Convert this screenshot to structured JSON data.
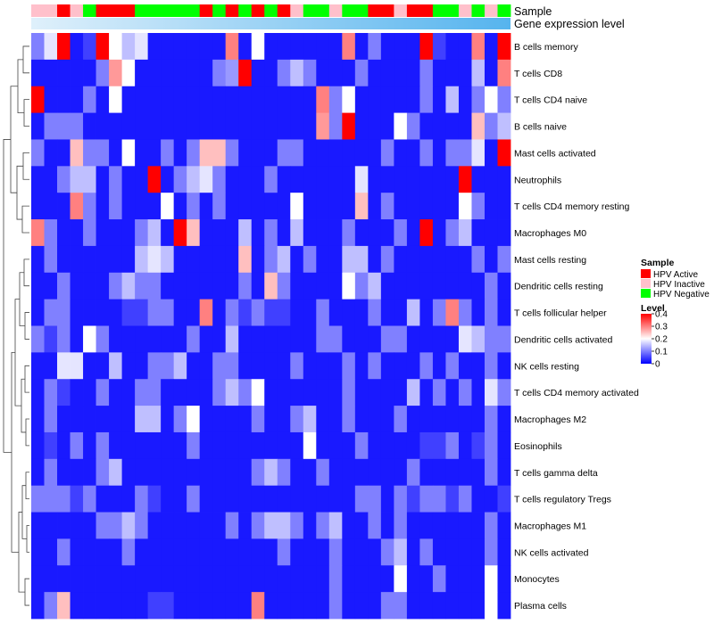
{
  "chart_data": {
    "type": "heatmap",
    "title": "",
    "annotation_labels": {
      "sample": "Sample",
      "gene": "Gene expression level"
    },
    "rows": [
      "B cells memory",
      "T cells CD8",
      "T cells CD4 naive",
      "B cells naive",
      "Mast cells activated",
      "Neutrophils",
      "T cells CD4 memory resting",
      "Macrophages M0",
      "Mast cells resting",
      "Dendritic cells resting",
      "T cells follicular helper",
      "Dendritic cells activated",
      "NK cells resting",
      "T cells CD4 memory activated",
      "Macrophages M2",
      "Eosinophils",
      "T cells gamma delta",
      "T cells regulatory  Tregs",
      "Macrophages M1",
      "NK cells activated",
      "Monocytes",
      "Plasma cells"
    ],
    "sample_groups": [
      "HPV Inactive",
      "HPV Inactive",
      "HPV Active",
      "HPV Inactive",
      "HPV Negative",
      "HPV Active",
      "HPV Active",
      "HPV Active",
      "HPV Negative",
      "HPV Negative",
      "HPV Negative",
      "HPV Negative",
      "HPV Negative",
      "HPV Active",
      "HPV Negative",
      "HPV Active",
      "HPV Negative",
      "HPV Active",
      "HPV Negative",
      "HPV Active",
      "HPV Inactive",
      "HPV Negative",
      "HPV Negative",
      "HPV Inactive",
      "HPV Negative",
      "HPV Negative",
      "HPV Active",
      "HPV Active",
      "HPV Inactive",
      "HPV Active",
      "HPV Active",
      "HPV Negative",
      "HPV Negative",
      "HPV Inactive",
      "HPV Negative",
      "HPV Inactive",
      "HPV Negative"
    ],
    "matrix": [
      [
        0.1,
        0.18,
        0.4,
        0.02,
        0.05,
        0.4,
        0.2,
        0.15,
        0.18,
        0.02,
        0.02,
        0.02,
        0.02,
        0.02,
        0.02,
        0.3,
        0.02,
        0.2,
        0.02,
        0.02,
        0.02,
        0.02,
        0.02,
        0.02,
        0.3,
        0.02,
        0.1,
        0.02,
        0.02,
        0.02,
        0.4,
        0.05,
        0.02,
        0.02,
        0.3,
        0.02,
        0.4
      ],
      [
        0.02,
        0.02,
        0.02,
        0.02,
        0.02,
        0.1,
        0.28,
        0.2,
        0.02,
        0.02,
        0.02,
        0.02,
        0.02,
        0.02,
        0.1,
        0.12,
        0.4,
        0.02,
        0.02,
        0.1,
        0.15,
        0.1,
        0.02,
        0.02,
        0.02,
        0.1,
        0.02,
        0.02,
        0.02,
        0.02,
        0.1,
        0.02,
        0.02,
        0.02,
        0.15,
        0.02,
        0.3
      ],
      [
        0.4,
        0.02,
        0.02,
        0.02,
        0.1,
        0.02,
        0.2,
        0.02,
        0.02,
        0.02,
        0.02,
        0.02,
        0.02,
        0.02,
        0.02,
        0.02,
        0.02,
        0.02,
        0.02,
        0.02,
        0.02,
        0.02,
        0.3,
        0.1,
        0.2,
        0.02,
        0.02,
        0.02,
        0.02,
        0.02,
        0.1,
        0.02,
        0.15,
        0.02,
        0.1,
        0.2,
        0.1
      ],
      [
        0.02,
        0.1,
        0.1,
        0.1,
        0.02,
        0.02,
        0.02,
        0.02,
        0.02,
        0.02,
        0.02,
        0.02,
        0.02,
        0.02,
        0.02,
        0.02,
        0.02,
        0.02,
        0.02,
        0.02,
        0.02,
        0.02,
        0.28,
        0.1,
        0.4,
        0.02,
        0.02,
        0.02,
        0.2,
        0.1,
        0.02,
        0.02,
        0.02,
        0.02,
        0.25,
        0.1,
        0.15
      ],
      [
        0.1,
        0.02,
        0.02,
        0.25,
        0.1,
        0.1,
        0.02,
        0.2,
        0.02,
        0.02,
        0.1,
        0.02,
        0.1,
        0.25,
        0.25,
        0.1,
        0.02,
        0.02,
        0.02,
        0.1,
        0.1,
        0.02,
        0.02,
        0.02,
        0.02,
        0.02,
        0.02,
        0.1,
        0.02,
        0.02,
        0.1,
        0.02,
        0.1,
        0.1,
        0.18,
        0.02,
        0.4
      ],
      [
        0.02,
        0.02,
        0.1,
        0.15,
        0.15,
        0.02,
        0.1,
        0.02,
        0.02,
        0.4,
        0.02,
        0.1,
        0.15,
        0.18,
        0.1,
        0.02,
        0.02,
        0.02,
        0.1,
        0.02,
        0.02,
        0.02,
        0.02,
        0.02,
        0.02,
        0.18,
        0.02,
        0.02,
        0.02,
        0.02,
        0.02,
        0.02,
        0.02,
        0.4,
        0.02,
        0.02,
        0.02
      ],
      [
        0.02,
        0.02,
        0.02,
        0.3,
        0.1,
        0.02,
        0.1,
        0.02,
        0.02,
        0.02,
        0.2,
        0.02,
        0.1,
        0.02,
        0.1,
        0.02,
        0.02,
        0.02,
        0.02,
        0.02,
        0.2,
        0.02,
        0.02,
        0.02,
        0.02,
        0.25,
        0.02,
        0.1,
        0.02,
        0.02,
        0.02,
        0.02,
        0.02,
        0.2,
        0.1,
        0.02,
        0.02
      ],
      [
        0.3,
        0.1,
        0.02,
        0.02,
        0.1,
        0.02,
        0.02,
        0.02,
        0.1,
        0.15,
        0.02,
        0.4,
        0.25,
        0.02,
        0.02,
        0.02,
        0.15,
        0.02,
        0.1,
        0.02,
        0.15,
        0.02,
        0.02,
        0.02,
        0.1,
        0.02,
        0.02,
        0.02,
        0.1,
        0.02,
        0.4,
        0.02,
        0.1,
        0.15,
        0.02,
        0.02,
        0.02
      ],
      [
        0.02,
        0.1,
        0.02,
        0.02,
        0.02,
        0.02,
        0.02,
        0.02,
        0.15,
        0.18,
        0.15,
        0.02,
        0.02,
        0.02,
        0.02,
        0.02,
        0.25,
        0.02,
        0.1,
        0.15,
        0.02,
        0.1,
        0.02,
        0.02,
        0.15,
        0.15,
        0.02,
        0.1,
        0.02,
        0.02,
        0.02,
        0.02,
        0.02,
        0.02,
        0.1,
        0.02,
        0.1
      ],
      [
        0.02,
        0.02,
        0.1,
        0.02,
        0.02,
        0.02,
        0.1,
        0.15,
        0.1,
        0.1,
        0.02,
        0.02,
        0.02,
        0.02,
        0.02,
        0.02,
        0.1,
        0.02,
        0.25,
        0.1,
        0.02,
        0.02,
        0.02,
        0.02,
        0.2,
        0.1,
        0.15,
        0.02,
        0.02,
        0.02,
        0.02,
        0.02,
        0.02,
        0.02,
        0.02,
        0.1,
        0.02
      ],
      [
        0.02,
        0.1,
        0.1,
        0.02,
        0.02,
        0.02,
        0.02,
        0.05,
        0.05,
        0.1,
        0.1,
        0.02,
        0.02,
        0.3,
        0.02,
        0.1,
        0.05,
        0.1,
        0.05,
        0.05,
        0.02,
        0.02,
        0.1,
        0.02,
        0.02,
        0.02,
        0.1,
        0.02,
        0.02,
        0.15,
        0.02,
        0.1,
        0.3,
        0.1,
        0.02,
        0.1,
        0.02
      ],
      [
        0.1,
        0.05,
        0.1,
        0.02,
        0.2,
        0.1,
        0.02,
        0.02,
        0.02,
        0.02,
        0.02,
        0.02,
        0.1,
        0.02,
        0.02,
        0.15,
        0.02,
        0.02,
        0.02,
        0.02,
        0.02,
        0.02,
        0.1,
        0.1,
        0.02,
        0.02,
        0.02,
        0.1,
        0.1,
        0.02,
        0.02,
        0.02,
        0.02,
        0.18,
        0.15,
        0.1,
        0.1
      ],
      [
        0.02,
        0.02,
        0.18,
        0.18,
        0.02,
        0.02,
        0.15,
        0.02,
        0.02,
        0.1,
        0.1,
        0.15,
        0.02,
        0.02,
        0.1,
        0.1,
        0.02,
        0.02,
        0.02,
        0.02,
        0.1,
        0.02,
        0.02,
        0.02,
        0.1,
        0.02,
        0.1,
        0.02,
        0.02,
        0.02,
        0.1,
        0.02,
        0.1,
        0.02,
        0.02,
        0.1,
        0.02
      ],
      [
        0.02,
        0.1,
        0.05,
        0.02,
        0.02,
        0.1,
        0.02,
        0.02,
        0.1,
        0.1,
        0.02,
        0.02,
        0.02,
        0.02,
        0.1,
        0.15,
        0.1,
        0.2,
        0.02,
        0.02,
        0.02,
        0.02,
        0.02,
        0.02,
        0.1,
        0.02,
        0.02,
        0.02,
        0.02,
        0.15,
        0.02,
        0.1,
        0.02,
        0.1,
        0.02,
        0.18,
        0.1
      ],
      [
        0.02,
        0.1,
        0.02,
        0.02,
        0.02,
        0.02,
        0.02,
        0.02,
        0.15,
        0.15,
        0.02,
        0.1,
        0.2,
        0.02,
        0.02,
        0.02,
        0.02,
        0.1,
        0.02,
        0.02,
        0.1,
        0.15,
        0.02,
        0.02,
        0.1,
        0.02,
        0.02,
        0.02,
        0.1,
        0.02,
        0.02,
        0.02,
        0.02,
        0.02,
        0.02,
        0.1,
        0.02
      ],
      [
        0.02,
        0.05,
        0.02,
        0.1,
        0.02,
        0.1,
        0.02,
        0.02,
        0.02,
        0.02,
        0.02,
        0.02,
        0.1,
        0.02,
        0.02,
        0.02,
        0.02,
        0.02,
        0.02,
        0.02,
        0.02,
        0.2,
        0.02,
        0.02,
        0.02,
        0.1,
        0.02,
        0.02,
        0.02,
        0.02,
        0.05,
        0.05,
        0.1,
        0.02,
        0.05,
        0.1,
        0.02
      ],
      [
        0.02,
        0.1,
        0.02,
        0.02,
        0.02,
        0.1,
        0.15,
        0.02,
        0.02,
        0.02,
        0.02,
        0.02,
        0.02,
        0.02,
        0.02,
        0.02,
        0.02,
        0.1,
        0.15,
        0.1,
        0.02,
        0.02,
        0.1,
        0.02,
        0.02,
        0.02,
        0.02,
        0.02,
        0.02,
        0.1,
        0.02,
        0.02,
        0.02,
        0.02,
        0.02,
        0.1,
        0.02
      ],
      [
        0.1,
        0.1,
        0.1,
        0.05,
        0.1,
        0.02,
        0.02,
        0.02,
        0.1,
        0.05,
        0.02,
        0.02,
        0.1,
        0.02,
        0.02,
        0.02,
        0.02,
        0.02,
        0.02,
        0.02,
        0.02,
        0.02,
        0.02,
        0.02,
        0.02,
        0.1,
        0.1,
        0.02,
        0.1,
        0.05,
        0.1,
        0.1,
        0.05,
        0.1,
        0.02,
        0.02,
        0.05
      ],
      [
        0.02,
        0.02,
        0.02,
        0.02,
        0.02,
        0.1,
        0.1,
        0.15,
        0.1,
        0.02,
        0.02,
        0.02,
        0.02,
        0.02,
        0.02,
        0.1,
        0.02,
        0.1,
        0.15,
        0.15,
        0.1,
        0.02,
        0.1,
        0.15,
        0.02,
        0.02,
        0.1,
        0.02,
        0.1,
        0.02,
        0.02,
        0.02,
        0.02,
        0.02,
        0.02,
        0.1,
        0.02
      ],
      [
        0.02,
        0.02,
        0.1,
        0.02,
        0.02,
        0.02,
        0.02,
        0.1,
        0.02,
        0.02,
        0.02,
        0.02,
        0.02,
        0.02,
        0.02,
        0.02,
        0.02,
        0.02,
        0.02,
        0.1,
        0.02,
        0.02,
        0.02,
        0.1,
        0.02,
        0.02,
        0.02,
        0.1,
        0.15,
        0.02,
        0.1,
        0.02,
        0.02,
        0.02,
        0.02,
        0.1,
        0.02
      ],
      [
        0.02,
        0.02,
        0.02,
        0.02,
        0.02,
        0.02,
        0.02,
        0.02,
        0.02,
        0.02,
        0.02,
        0.02,
        0.02,
        0.02,
        0.02,
        0.02,
        0.02,
        0.02,
        0.02,
        0.02,
        0.02,
        0.02,
        0.02,
        0.1,
        0.02,
        0.02,
        0.02,
        0.02,
        0.2,
        0.02,
        0.02,
        0.1,
        0.02,
        0.02,
        0.02,
        0.2,
        0.02
      ],
      [
        0.02,
        0.1,
        0.25,
        0.02,
        0.02,
        0.02,
        0.02,
        0.02,
        0.02,
        0.05,
        0.05,
        0.02,
        0.02,
        0.02,
        0.02,
        0.02,
        0.02,
        0.3,
        0.02,
        0.02,
        0.02,
        0.02,
        0.02,
        0.1,
        0.02,
        0.02,
        0.02,
        0.1,
        0.1,
        0.02,
        0.02,
        0.02,
        0.02,
        0.02,
        0.02,
        0.2,
        0.02
      ]
    ],
    "gene_expression_bar": "gradient",
    "legend": {
      "sample_title": "Sample",
      "sample_entries": [
        {
          "label": "HPV Active",
          "color": "#ff0000"
        },
        {
          "label": "HPV Inactive",
          "color": "#ffc0cb"
        },
        {
          "label": "HPV Negative",
          "color": "#00ff00"
        }
      ],
      "level_title": "Level",
      "level_ticks": [
        "0.4",
        "0.3",
        "0.2",
        "0.1",
        "0"
      ],
      "level_range": [
        0,
        0.4
      ]
    },
    "colors": {
      "low": "#0000ff",
      "mid": "#ffffff",
      "high": "#ff0000"
    }
  }
}
